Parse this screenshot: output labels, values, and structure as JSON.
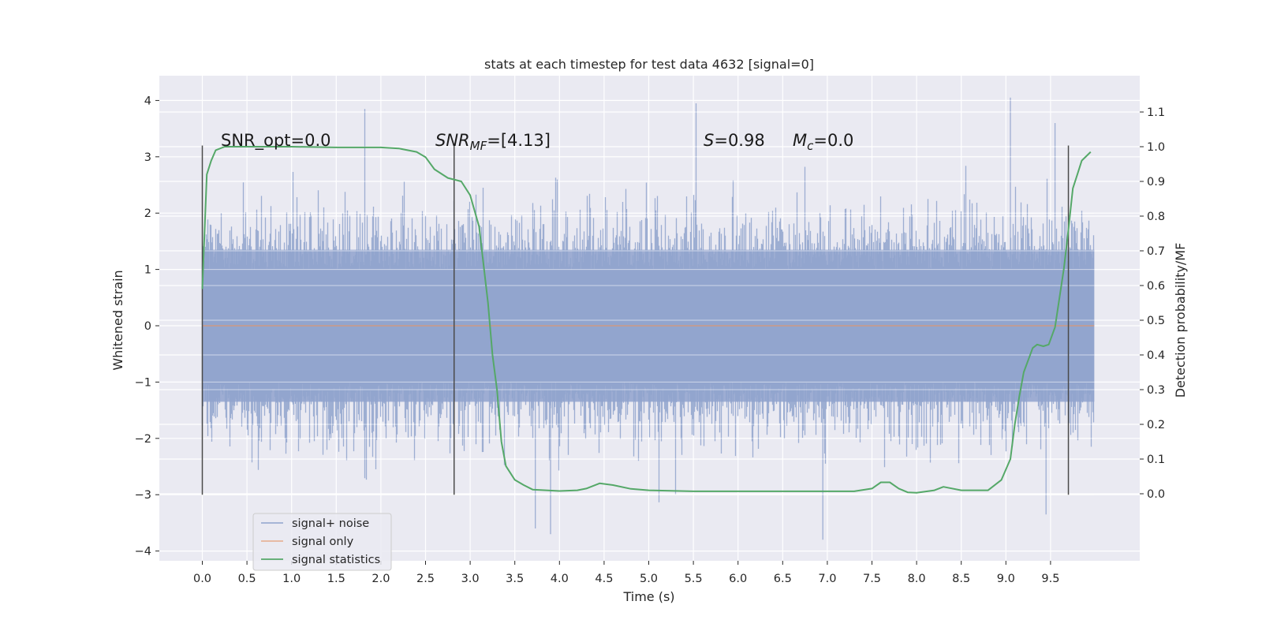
{
  "chart_data": {
    "type": "line",
    "title": "stats at each timestep for test data 4632 [signal=0]",
    "xlabel": "Time (s)",
    "ylabel": "Whitened strain",
    "y2label": "Detection probability/MF",
    "xlim": [
      -0.48,
      10.5
    ],
    "ylim": [
      -4.2,
      4.4
    ],
    "y2lim": [
      -0.2,
      1.2
    ],
    "x_ticks": [
      "0.0",
      "0.5",
      "1.0",
      "1.5",
      "2.0",
      "2.5",
      "3.0",
      "3.5",
      "4.0",
      "4.5",
      "5.0",
      "5.5",
      "6.0",
      "6.5",
      "7.0",
      "7.5",
      "8.0",
      "8.5",
      "9.0",
      "9.5"
    ],
    "y_ticks": [
      "-4",
      "-3",
      "-2",
      "-1",
      "0",
      "1",
      "2",
      "3",
      "4"
    ],
    "y2_ticks": [
      "0.0",
      "0.1",
      "0.2",
      "0.3",
      "0.4",
      "0.5",
      "0.6",
      "0.7",
      "0.8",
      "0.9",
      "1.0",
      "1.1"
    ],
    "grid": true,
    "legend_position": "lower-left",
    "legend": [
      {
        "label": "signal+ noise",
        "color": "#8fa3cc"
      },
      {
        "label": "signal only",
        "color": "#dd8452"
      },
      {
        "label": "signal statistics",
        "color": "#55a868"
      }
    ],
    "annotations": {
      "snr_opt": "SNR_opt=0.0",
      "snr_mf_sym": "SNR",
      "snr_mf_sub": "MF",
      "snr_mf_val": "=[4.13]",
      "s_sym": "S",
      "s_val": "=0.98",
      "mc_sym": "M",
      "mc_sub": "c",
      "mc_val": "=0.0"
    },
    "vertical_markers_x": [
      0.0,
      2.82,
      9.7
    ],
    "vertical_marker_range_y": [
      -3.0,
      3.2
    ],
    "noise": {
      "x_range": [
        0.0,
        9.99
      ],
      "envelope_mean": 0.0,
      "envelope_std": 1.0,
      "extrema": {
        "max": 4.05,
        "min": -3.8
      }
    },
    "signal_only": {
      "value": 0.0
    },
    "series": [
      {
        "name": "signal statistics",
        "axis": "right",
        "x": [
          0.0,
          0.05,
          0.1,
          0.15,
          0.25,
          0.5,
          1.0,
          1.5,
          2.0,
          2.2,
          2.4,
          2.5,
          2.6,
          2.75,
          2.9,
          3.0,
          3.1,
          3.2,
          3.25,
          3.3,
          3.35,
          3.4,
          3.5,
          3.6,
          3.7,
          4.0,
          4.2,
          4.3,
          4.45,
          4.6,
          4.8,
          5.0,
          5.5,
          6.0,
          6.5,
          7.0,
          7.3,
          7.5,
          7.6,
          7.7,
          7.8,
          7.9,
          8.0,
          8.2,
          8.3,
          8.5,
          8.8,
          8.95,
          9.05,
          9.1,
          9.15,
          9.2,
          9.3,
          9.35,
          9.42,
          9.48,
          9.55,
          9.65,
          9.7,
          9.75,
          9.8,
          9.85,
          9.95
        ],
        "values": [
          0.59,
          0.92,
          0.96,
          0.99,
          1.0,
          1.0,
          1.0,
          0.998,
          0.998,
          0.995,
          0.985,
          0.97,
          0.935,
          0.91,
          0.9,
          0.86,
          0.77,
          0.55,
          0.4,
          0.3,
          0.15,
          0.08,
          0.04,
          0.025,
          0.012,
          0.008,
          0.01,
          0.015,
          0.03,
          0.025,
          0.014,
          0.01,
          0.007,
          0.007,
          0.007,
          0.007,
          0.007,
          0.015,
          0.033,
          0.033,
          0.015,
          0.004,
          0.003,
          0.01,
          0.02,
          0.01,
          0.01,
          0.04,
          0.1,
          0.2,
          0.28,
          0.35,
          0.42,
          0.43,
          0.425,
          0.43,
          0.48,
          0.65,
          0.76,
          0.88,
          0.92,
          0.96,
          0.985
        ]
      }
    ]
  }
}
